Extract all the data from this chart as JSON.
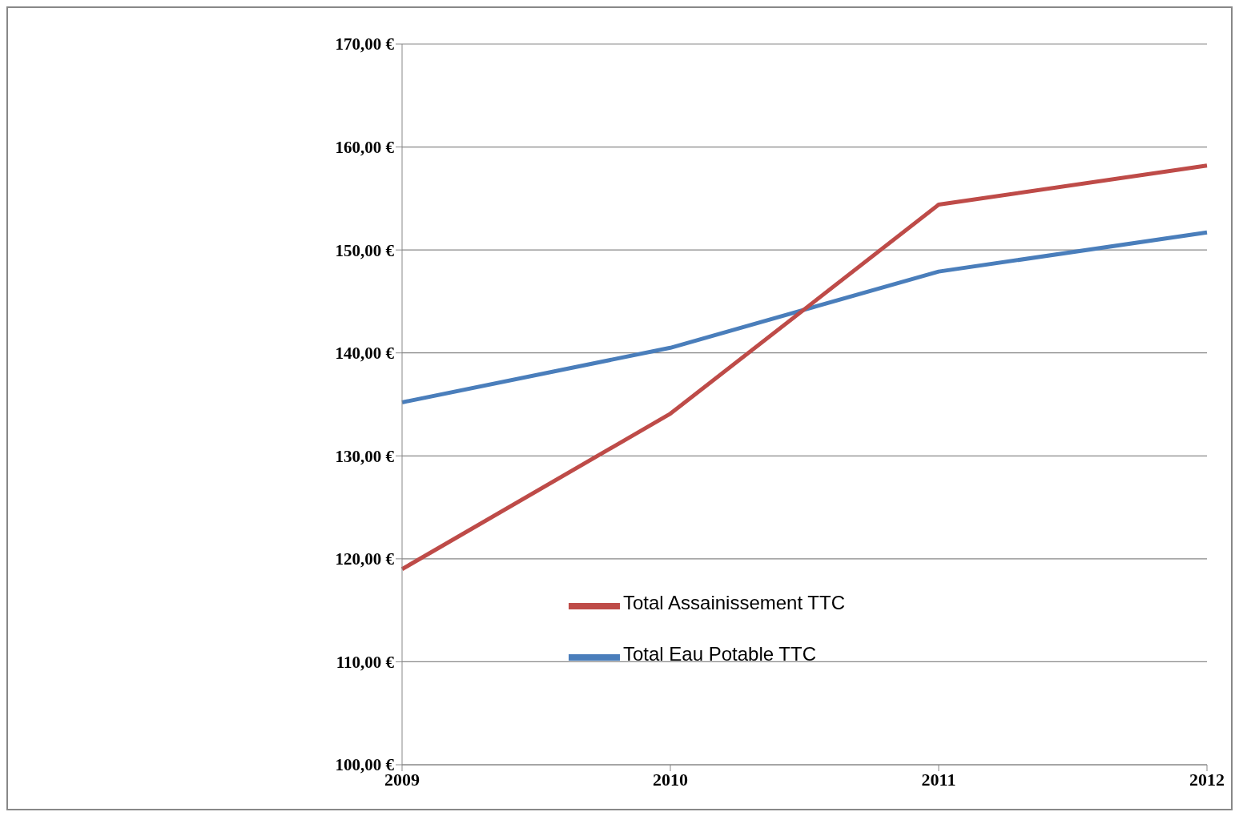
{
  "chart_data": {
    "type": "line",
    "categories": [
      "2009",
      "2010",
      "2011",
      "2012"
    ],
    "series": [
      {
        "name": "Total Eau Potable TTC",
        "color": "#4a7ebb",
        "values": [
          135.2,
          140.5,
          147.9,
          151.7
        ]
      },
      {
        "name": "Total Assainissement TTC",
        "color": "#be4b48",
        "values": [
          119.0,
          134.1,
          154.4,
          158.2
        ]
      }
    ],
    "ylim": [
      100,
      170
    ],
    "yticks": [
      {
        "value": 100,
        "label": "100,00 €"
      },
      {
        "value": 110,
        "label": "110,00 €"
      },
      {
        "value": 120,
        "label": "120,00 €"
      },
      {
        "value": 130,
        "label": "130,00 €"
      },
      {
        "value": 140,
        "label": "140,00 €"
      },
      {
        "value": 150,
        "label": "150,00 €"
      },
      {
        "value": 160,
        "label": "160,00 €"
      },
      {
        "value": 170,
        "label": "170,00 €"
      }
    ],
    "grid": "y",
    "legend": "bottom",
    "marker": "none",
    "line_style": "solid"
  }
}
